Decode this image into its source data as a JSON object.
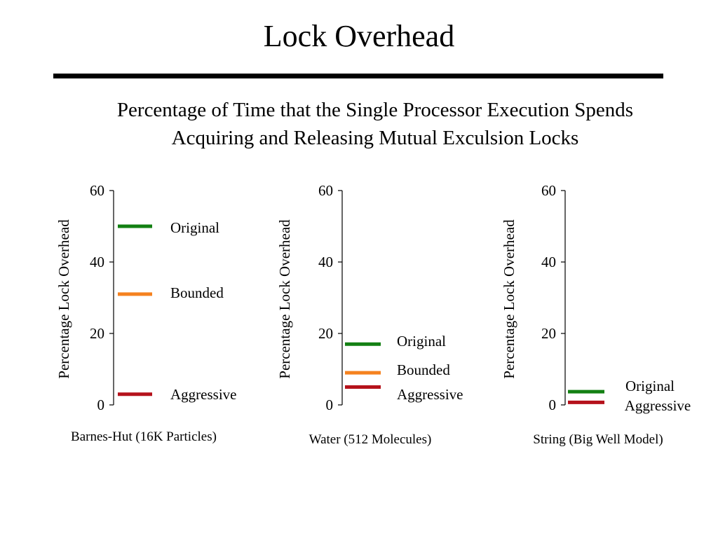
{
  "slide": {
    "title": "Lock Overhead",
    "subtitle_line1": "Percentage of Time that the Single Processor Execution Spends",
    "subtitle_line2": "Acquiring and Releasing Mutual Exculsion Locks"
  },
  "colors": {
    "Original": "#138013",
    "Bounded": "#f5821f",
    "Aggressive": "#b5121b"
  },
  "chart_data": [
    {
      "type": "line",
      "xlabel": "Barnes-Hut (16K Particles)",
      "ylabel": "Percentage Lock Overhead",
      "ylim": [
        0,
        60
      ],
      "yticks": [
        "0",
        "20",
        "40",
        "60"
      ],
      "series": [
        {
          "name": "Original",
          "value": 50
        },
        {
          "name": "Bounded",
          "value": 31
        },
        {
          "name": "Aggressive",
          "value": 3
        }
      ]
    },
    {
      "type": "line",
      "xlabel": "Water (512 Molecules)",
      "ylabel": "Percentage Lock Overhead",
      "ylim": [
        0,
        60
      ],
      "yticks": [
        "0",
        "20",
        "40",
        "60"
      ],
      "series": [
        {
          "name": "Original",
          "value": 17
        },
        {
          "name": "Bounded",
          "value": 9
        },
        {
          "name": "Aggressive",
          "value": 5
        }
      ]
    },
    {
      "type": "line",
      "xlabel": "String (Big Well Model)",
      "ylabel": "Percentage Lock Overhead",
      "ylim": [
        0,
        60
      ],
      "yticks": [
        "0",
        "20",
        "40",
        "60"
      ],
      "series": [
        {
          "name": "Original",
          "value": 3.7
        },
        {
          "name": "Aggressive",
          "value": 0.7
        }
      ]
    }
  ]
}
